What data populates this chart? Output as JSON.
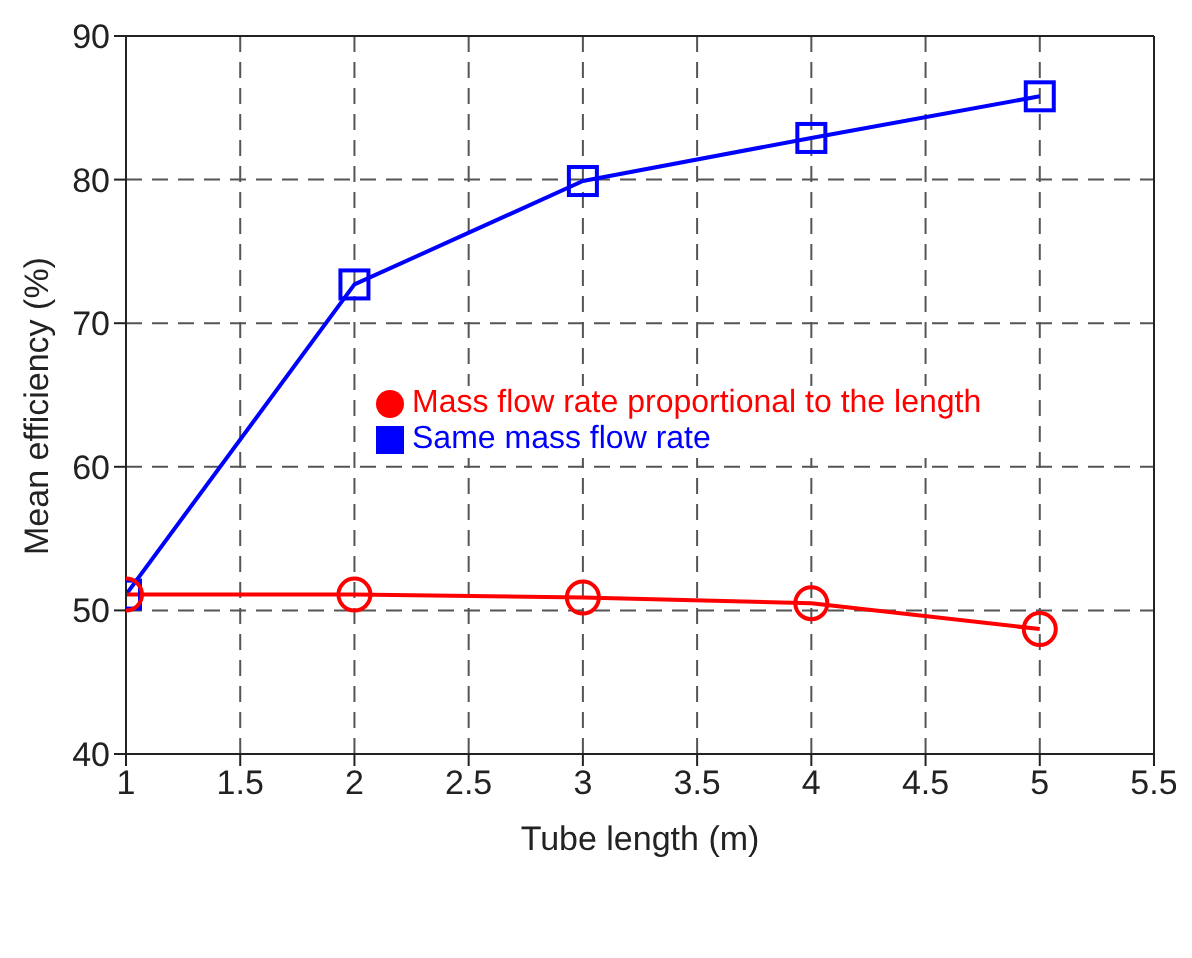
{
  "chart_data": {
    "type": "line",
    "xlabel": "Tube length (m)",
    "ylabel": "Mean efficiency (%)",
    "x": [
      1,
      2,
      3,
      4,
      5
    ],
    "series": [
      {
        "name": "Mass flow rate proportional to the length",
        "color": "#ff0000",
        "marker": "circle",
        "values": [
          51.1,
          51.1,
          50.9,
          50.5,
          48.7
        ]
      },
      {
        "name": "Same mass flow rate",
        "color": "#0000ff",
        "marker": "square",
        "values": [
          51.1,
          72.7,
          79.9,
          82.9,
          85.8
        ]
      }
    ],
    "xlim": [
      1,
      5.5
    ],
    "xticks": [
      1,
      1.5,
      2,
      2.5,
      3,
      3.5,
      4,
      4.5,
      5,
      5.5
    ],
    "ylim": [
      40,
      90
    ],
    "yticks": [
      40,
      50,
      60,
      70,
      80,
      90
    ],
    "grid": true,
    "legend": "right",
    "line_style": "solid"
  }
}
